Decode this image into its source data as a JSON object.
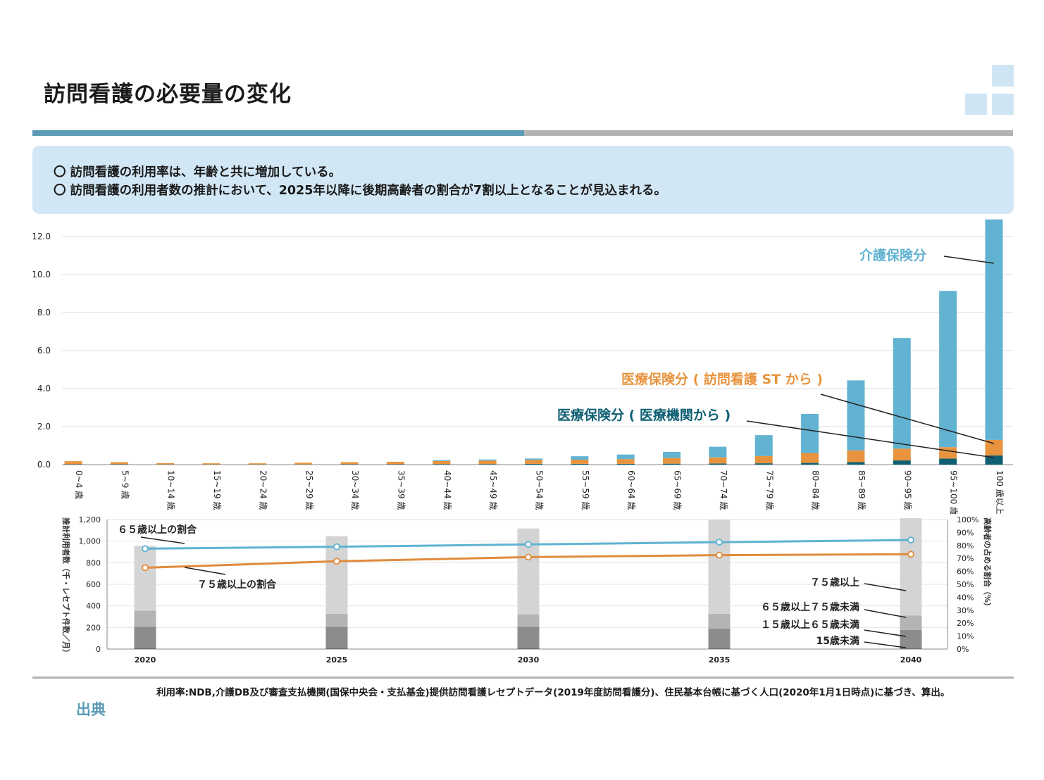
{
  "title": "訪問看護の必要量の変化",
  "summary": {
    "line1": "〇 訪問看護の利用率は、年齢と共に増加している。",
    "line2": "〇 訪問看護の利用者数の推計において、2025年以降に後期高齢者の割合が7割以上となることが見込まれる。"
  },
  "colors": {
    "kaigo": "#62b3d2",
    "iryo_st": "#e8943e",
    "iryo_kikan": "#0f5f73",
    "line65": "#5fb3d1",
    "line75": "#e08b3c",
    "accent_blue": "#5b9bb5"
  },
  "chart_data": [
    {
      "type": "bar",
      "stacked": true,
      "categories": [
        "0~4 歳",
        "5~9 歳",
        "10~14 歳",
        "15~19 歳",
        "20~24 歳",
        "25~29 歳",
        "30~34 歳",
        "35~39 歳",
        "40~44 歳",
        "45~49 歳",
        "50~54 歳",
        "55~59 歳",
        "60~64 歳",
        "65~69 歳",
        "70~74 歳",
        "75~79 歳",
        "80~84 歳",
        "85~89 歳",
        "90~95 歳",
        "95~100 歳",
        "100 歳以上"
      ],
      "series": [
        {
          "name": "医療保険分 ( 医療機関から )",
          "color": "#0f5f73",
          "values": [
            0.02,
            0.02,
            0.01,
            0.01,
            0.01,
            0.01,
            0.02,
            0.02,
            0.03,
            0.03,
            0.04,
            0.04,
            0.04,
            0.05,
            0.06,
            0.07,
            0.09,
            0.13,
            0.22,
            0.32,
            0.48
          ]
        },
        {
          "name": "医療保険分 ( 訪問看護 ST から )",
          "color": "#e8943e",
          "values": [
            0.16,
            0.11,
            0.07,
            0.06,
            0.06,
            0.09,
            0.11,
            0.13,
            0.16,
            0.18,
            0.21,
            0.22,
            0.25,
            0.3,
            0.32,
            0.38,
            0.52,
            0.62,
            0.62,
            0.6,
            0.82
          ]
        },
        {
          "name": "介護保険分",
          "color": "#62b3d2",
          "values": [
            0,
            0,
            0,
            0,
            0,
            0,
            0,
            0,
            0.05,
            0.06,
            0.07,
            0.18,
            0.24,
            0.32,
            0.56,
            1.1,
            2.06,
            3.68,
            5.82,
            8.22,
            11.6
          ]
        }
      ],
      "ylim": [
        0,
        12.8
      ],
      "yticks": [
        "0.0",
        "2.0",
        "4.0",
        "6.0",
        "8.0",
        "10.0",
        "12.0"
      ],
      "grid": true
    },
    {
      "type": "bar+line",
      "categories": [
        "2020",
        "2025",
        "2030",
        "2035",
        "2040"
      ],
      "ylabel": "推計利用者数（千・レセプト件数／月）",
      "y2label": "高齢者の占める割合（%）",
      "ylim": [
        0,
        1200
      ],
      "y2lim": [
        0,
        100
      ],
      "yticks": [
        "0",
        "200",
        "400",
        "600",
        "800",
        "1,000",
        "1,200"
      ],
      "y2ticks": [
        "0%",
        "10%",
        "20%",
        "30%",
        "40%",
        "50%",
        "60%",
        "70%",
        "80%",
        "90%",
        "100%"
      ],
      "bar_series": [
        {
          "name": "15歳未満",
          "color": "#6e6e6e",
          "values": [
            12,
            11,
            10,
            9,
            9
          ]
        },
        {
          "name": "１５歳以上６５歳未満",
          "color": "#8c8c8c",
          "values": [
            193,
            195,
            197,
            182,
            168
          ]
        },
        {
          "name": "６５歳以上７５歳未満",
          "color": "#b4b4b4",
          "values": [
            150,
            120,
            115,
            135,
            135
          ]
        },
        {
          "name": "７５歳以上",
          "color": "#d4d4d4",
          "values": [
            600,
            720,
            795,
            870,
            900
          ]
        }
      ],
      "line_series": [
        {
          "name": "６５歳以上の割合",
          "color": "#5fb3d1",
          "values": [
            77.5,
            79.0,
            80.8,
            82.5,
            84.2
          ]
        },
        {
          "name": "７５歳以上の割合",
          "color": "#e08b3c",
          "values": [
            62.8,
            67.8,
            71.0,
            72.5,
            73.2
          ]
        }
      ]
    }
  ],
  "annotations": {
    "kaigo": "介護保険分",
    "iryo_st": "医療保険分 ( 訪問看護 ST から )",
    "iryo_kikan": "医療保険分 ( 医療機関から )",
    "ratio65": "６５歳以上の割合",
    "ratio75": "７５歳以上の割合",
    "age75": "７５歳以上",
    "age65_75": "６５歳以上７５歳未満",
    "age15_65": "１５歳以上６５歳未満",
    "age_u15": "15歳未満"
  },
  "source": {
    "label": "出典",
    "text": "利用率:NDB,介護DB及び審査支払機関(国保中央会・支払基金)提供訪問看護レセプトデータ(2019年度訪問看護分)、住民基本台帳に基づく人口(2020年1月1日時点)に基づき、算出。"
  }
}
